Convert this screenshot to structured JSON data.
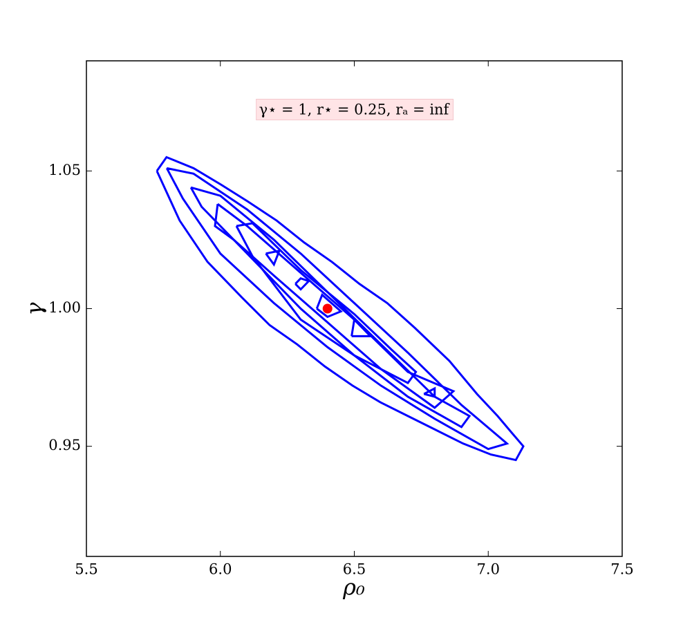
{
  "chart_data": {
    "type": "contour",
    "annotation": "γ⋆ = 1, r⋆ = 0.25, rₐ = inf",
    "xlabel": "ρ₀",
    "ylabel": "γ",
    "xlim": [
      5.5,
      7.5
    ],
    "ylim": [
      0.91,
      1.09
    ],
    "xticks": [
      5.5,
      {
        "value": 6.0,
        "label": "6.0"
      },
      6.5,
      {
        "value": 7.0,
        "label": "7.0"
      },
      7.5
    ],
    "yticks": [
      0.95,
      {
        "value": 1.0,
        "label": "1.00"
      },
      1.05
    ],
    "color": "#0000ff",
    "series": [
      {
        "x": [
          5.763,
          5.799,
          5.9,
          6.003,
          6.101,
          6.21,
          6.313,
          6.416,
          6.519,
          6.623,
          6.726,
          6.855,
          6.958,
          7.035,
          7.087,
          7.131,
          7.103,
          7.01,
          6.906,
          6.803,
          6.7,
          6.597,
          6.494,
          6.39,
          6.287,
          6.184,
          6.081,
          5.952,
          5.848,
          5.763
        ],
        "y": [
          1.05,
          1.055,
          1.051,
          1.045,
          1.039,
          1.032,
          1.024,
          1.017,
          1.009,
          1.002,
          0.993,
          0.981,
          0.969,
          0.961,
          0.955,
          0.95,
          0.945,
          0.947,
          0.951,
          0.956,
          0.961,
          0.966,
          0.972,
          0.979,
          0.987,
          0.994,
          1.004,
          1.017,
          1.032,
          1.05
        ]
      },
      {
        "x": [
          5.8,
          5.9,
          6.1,
          6.3,
          6.5,
          6.7,
          6.9,
          7.07,
          7.0,
          6.8,
          6.6,
          6.4,
          6.2,
          6.0,
          5.86,
          5.8
        ],
        "y": [
          1.051,
          1.049,
          1.036,
          1.02,
          1.002,
          0.984,
          0.965,
          0.951,
          0.949,
          0.96,
          0.972,
          0.986,
          1.002,
          1.02,
          1.04,
          1.051
        ]
      },
      {
        "x": [
          5.89,
          6.0,
          6.2,
          6.4,
          6.6,
          6.8,
          6.93,
          6.9,
          6.7,
          6.5,
          6.3,
          6.1,
          5.93,
          5.89
        ],
        "y": [
          1.044,
          1.041,
          1.025,
          1.006,
          0.987,
          0.968,
          0.961,
          0.957,
          0.968,
          0.983,
          1.0,
          1.02,
          1.037,
          1.044
        ]
      },
      {
        "x": [
          5.99,
          6.1,
          6.3,
          6.5,
          6.7,
          6.87,
          6.8,
          6.6,
          6.4,
          6.2,
          6.05,
          5.98,
          5.99
        ],
        "y": [
          1.038,
          1.03,
          1.013,
          0.996,
          0.977,
          0.97,
          0.964,
          0.978,
          0.995,
          1.012,
          1.025,
          1.03,
          1.038
        ]
      },
      {
        "x": [
          6.06,
          6.12,
          6.3,
          6.5,
          6.64,
          6.73,
          6.7,
          6.5,
          6.3,
          6.12,
          6.06
        ],
        "y": [
          1.03,
          1.031,
          1.014,
          0.998,
          0.985,
          0.977,
          0.973,
          0.983,
          0.996,
          1.019,
          1.03
        ]
      },
      {
        "x": [
          6.17,
          6.22,
          6.2,
          6.17
        ],
        "y": [
          1.02,
          1.021,
          1.016,
          1.02
        ]
      },
      {
        "x": [
          6.28,
          6.3,
          6.33,
          6.3,
          6.28
        ],
        "y": [
          1.009,
          1.011,
          1.01,
          1.007,
          1.009
        ]
      },
      {
        "x": [
          6.36,
          6.38,
          6.45,
          6.4,
          6.36
        ],
        "y": [
          1.0,
          1.005,
          0.999,
          0.997,
          1.0
        ]
      },
      {
        "x": [
          6.49,
          6.5,
          6.56,
          6.49
        ],
        "y": [
          0.99,
          0.996,
          0.99,
          0.99
        ]
      },
      {
        "x": [
          6.76,
          6.8,
          6.8,
          6.76
        ],
        "y": [
          0.969,
          0.971,
          0.968,
          0.969
        ]
      }
    ],
    "point": {
      "x": 6.4,
      "y": 1.0,
      "color": "#ff0000"
    }
  }
}
